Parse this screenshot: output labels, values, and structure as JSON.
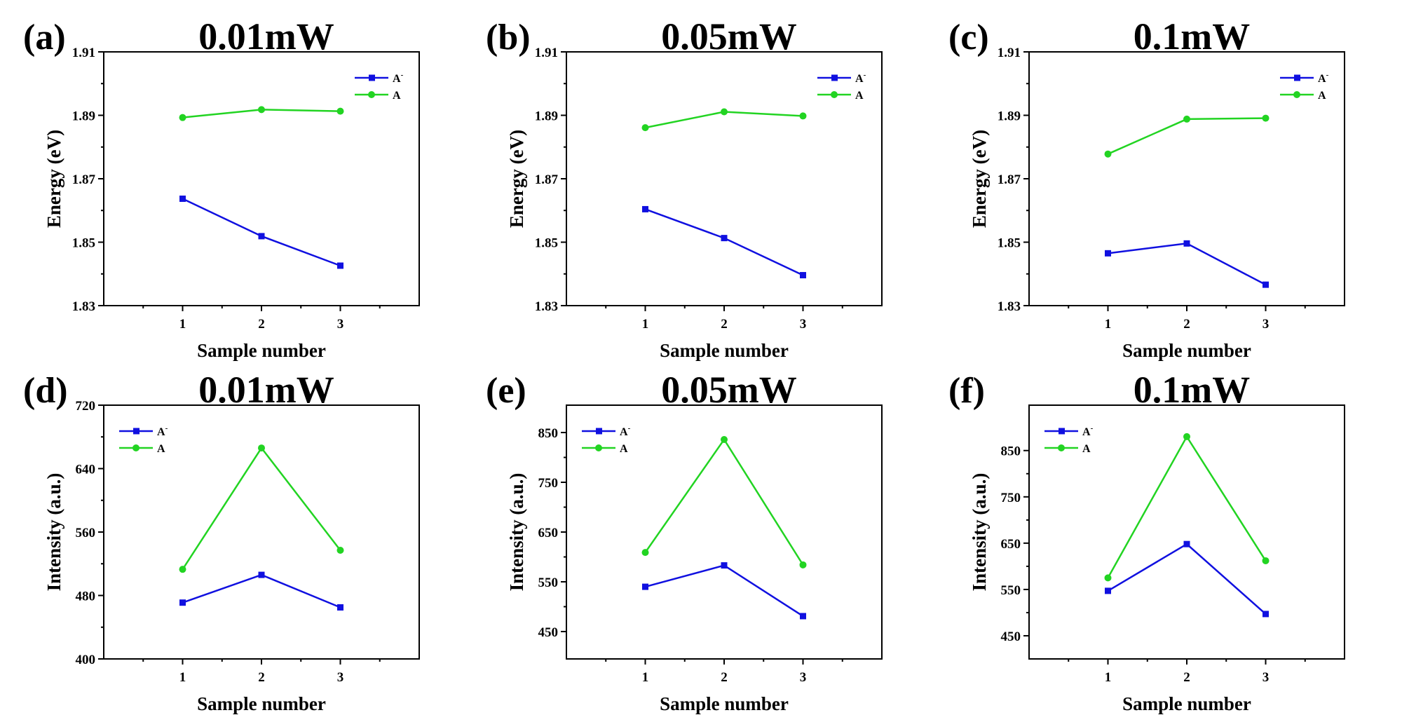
{
  "chart_data": [
    {
      "type": "line",
      "panel_label": "(a)",
      "title": "0.01mW",
      "xlabel": "Sample number",
      "ylabel": "Energy (eV)",
      "x": [
        1,
        2,
        3
      ],
      "xlim": [
        0,
        4
      ],
      "xticks": [
        1,
        2,
        3
      ],
      "ylim": [
        1.83,
        1.91
      ],
      "yticks": [
        "1.83",
        "1.85",
        "1.87",
        "1.89",
        "1.91"
      ],
      "legend_position": "top-right",
      "series": [
        {
          "name": "A",
          "sup": "-",
          "color": "#1010e0",
          "marker": "square",
          "values": [
            1.8637,
            1.8519,
            1.8426
          ]
        },
        {
          "name": "A",
          "sup": "",
          "color": "#22d422",
          "marker": "circle",
          "values": [
            1.8893,
            1.8918,
            1.8913
          ]
        }
      ]
    },
    {
      "type": "line",
      "panel_label": "(b)",
      "title": "0.05mW",
      "xlabel": "Sample number",
      "ylabel": "Energy (eV)",
      "x": [
        1,
        2,
        3
      ],
      "xlim": [
        0,
        4
      ],
      "xticks": [
        1,
        2,
        3
      ],
      "ylim": [
        1.83,
        1.91
      ],
      "yticks": [
        "1.83",
        "1.85",
        "1.87",
        "1.89",
        "1.91"
      ],
      "legend_position": "top-right",
      "series": [
        {
          "name": "A",
          "sup": "-",
          "color": "#1010e0",
          "marker": "square",
          "values": [
            1.8604,
            1.8513,
            1.8396
          ]
        },
        {
          "name": "A",
          "sup": "",
          "color": "#22d422",
          "marker": "circle",
          "values": [
            1.8861,
            1.8911,
            1.8898
          ]
        }
      ]
    },
    {
      "type": "line",
      "panel_label": "(c)",
      "title": "0.1mW",
      "xlabel": "Sample number",
      "ylabel": "Energy (eV)",
      "x": [
        1,
        2,
        3
      ],
      "xlim": [
        0,
        4
      ],
      "xticks": [
        1,
        2,
        3
      ],
      "ylim": [
        1.83,
        1.91
      ],
      "yticks": [
        "1.83",
        "1.85",
        "1.87",
        "1.89",
        "1.91"
      ],
      "legend_position": "top-right",
      "series": [
        {
          "name": "A",
          "sup": "-",
          "color": "#1010e0",
          "marker": "square",
          "values": [
            1.8465,
            1.8496,
            1.8366
          ]
        },
        {
          "name": "A",
          "sup": "",
          "color": "#22d422",
          "marker": "circle",
          "values": [
            1.8778,
            1.8888,
            1.8891
          ]
        }
      ]
    },
    {
      "type": "line",
      "panel_label": "(d)",
      "title": "0.01mW",
      "xlabel": "Sample number",
      "ylabel": "Intensity (a.u.)",
      "x": [
        1,
        2,
        3
      ],
      "xlim": [
        0,
        4
      ],
      "xticks": [
        1,
        2,
        3
      ],
      "ylim": [
        400,
        720
      ],
      "yticks": [
        "400",
        "480",
        "560",
        "640",
        "720"
      ],
      "legend_position": "top-left",
      "series": [
        {
          "name": "A",
          "sup": "-",
          "color": "#1010e0",
          "marker": "square",
          "values": [
            471,
            506,
            465
          ]
        },
        {
          "name": "A",
          "sup": "",
          "color": "#22d422",
          "marker": "circle",
          "values": [
            513,
            666,
            537
          ]
        }
      ]
    },
    {
      "type": "line",
      "panel_label": "(e)",
      "title": "0.05mW",
      "xlabel": "Sample number",
      "ylabel": "Intensity (a.u.)",
      "x": [
        1,
        2,
        3
      ],
      "xlim": [
        0,
        4
      ],
      "xticks": [
        1,
        2,
        3
      ],
      "ylim": [
        395,
        905
      ],
      "yticks": [
        "450",
        "550",
        "650",
        "750",
        "850"
      ],
      "legend_position": "top-left",
      "series": [
        {
          "name": "A",
          "sup": "-",
          "color": "#1010e0",
          "marker": "square",
          "values": [
            540,
            583,
            481
          ]
        },
        {
          "name": "A",
          "sup": "",
          "color": "#22d422",
          "marker": "circle",
          "values": [
            609,
            836,
            584
          ]
        }
      ]
    },
    {
      "type": "line",
      "panel_label": "(f)",
      "title": "0.1mW",
      "xlabel": "Sample number",
      "ylabel": "Intensity (a.u.)",
      "x": [
        1,
        2,
        3
      ],
      "xlim": [
        0,
        4
      ],
      "xticks": [
        1,
        2,
        3
      ],
      "ylim": [
        400,
        948
      ],
      "yticks": [
        "450",
        "550",
        "650",
        "750",
        "850"
      ],
      "legend_position": "top-left",
      "series": [
        {
          "name": "A",
          "sup": "-",
          "color": "#1010e0",
          "marker": "square",
          "values": [
            547,
            648,
            497
          ]
        },
        {
          "name": "A",
          "sup": "",
          "color": "#22d422",
          "marker": "circle",
          "values": [
            575,
            880,
            612
          ]
        }
      ]
    }
  ]
}
